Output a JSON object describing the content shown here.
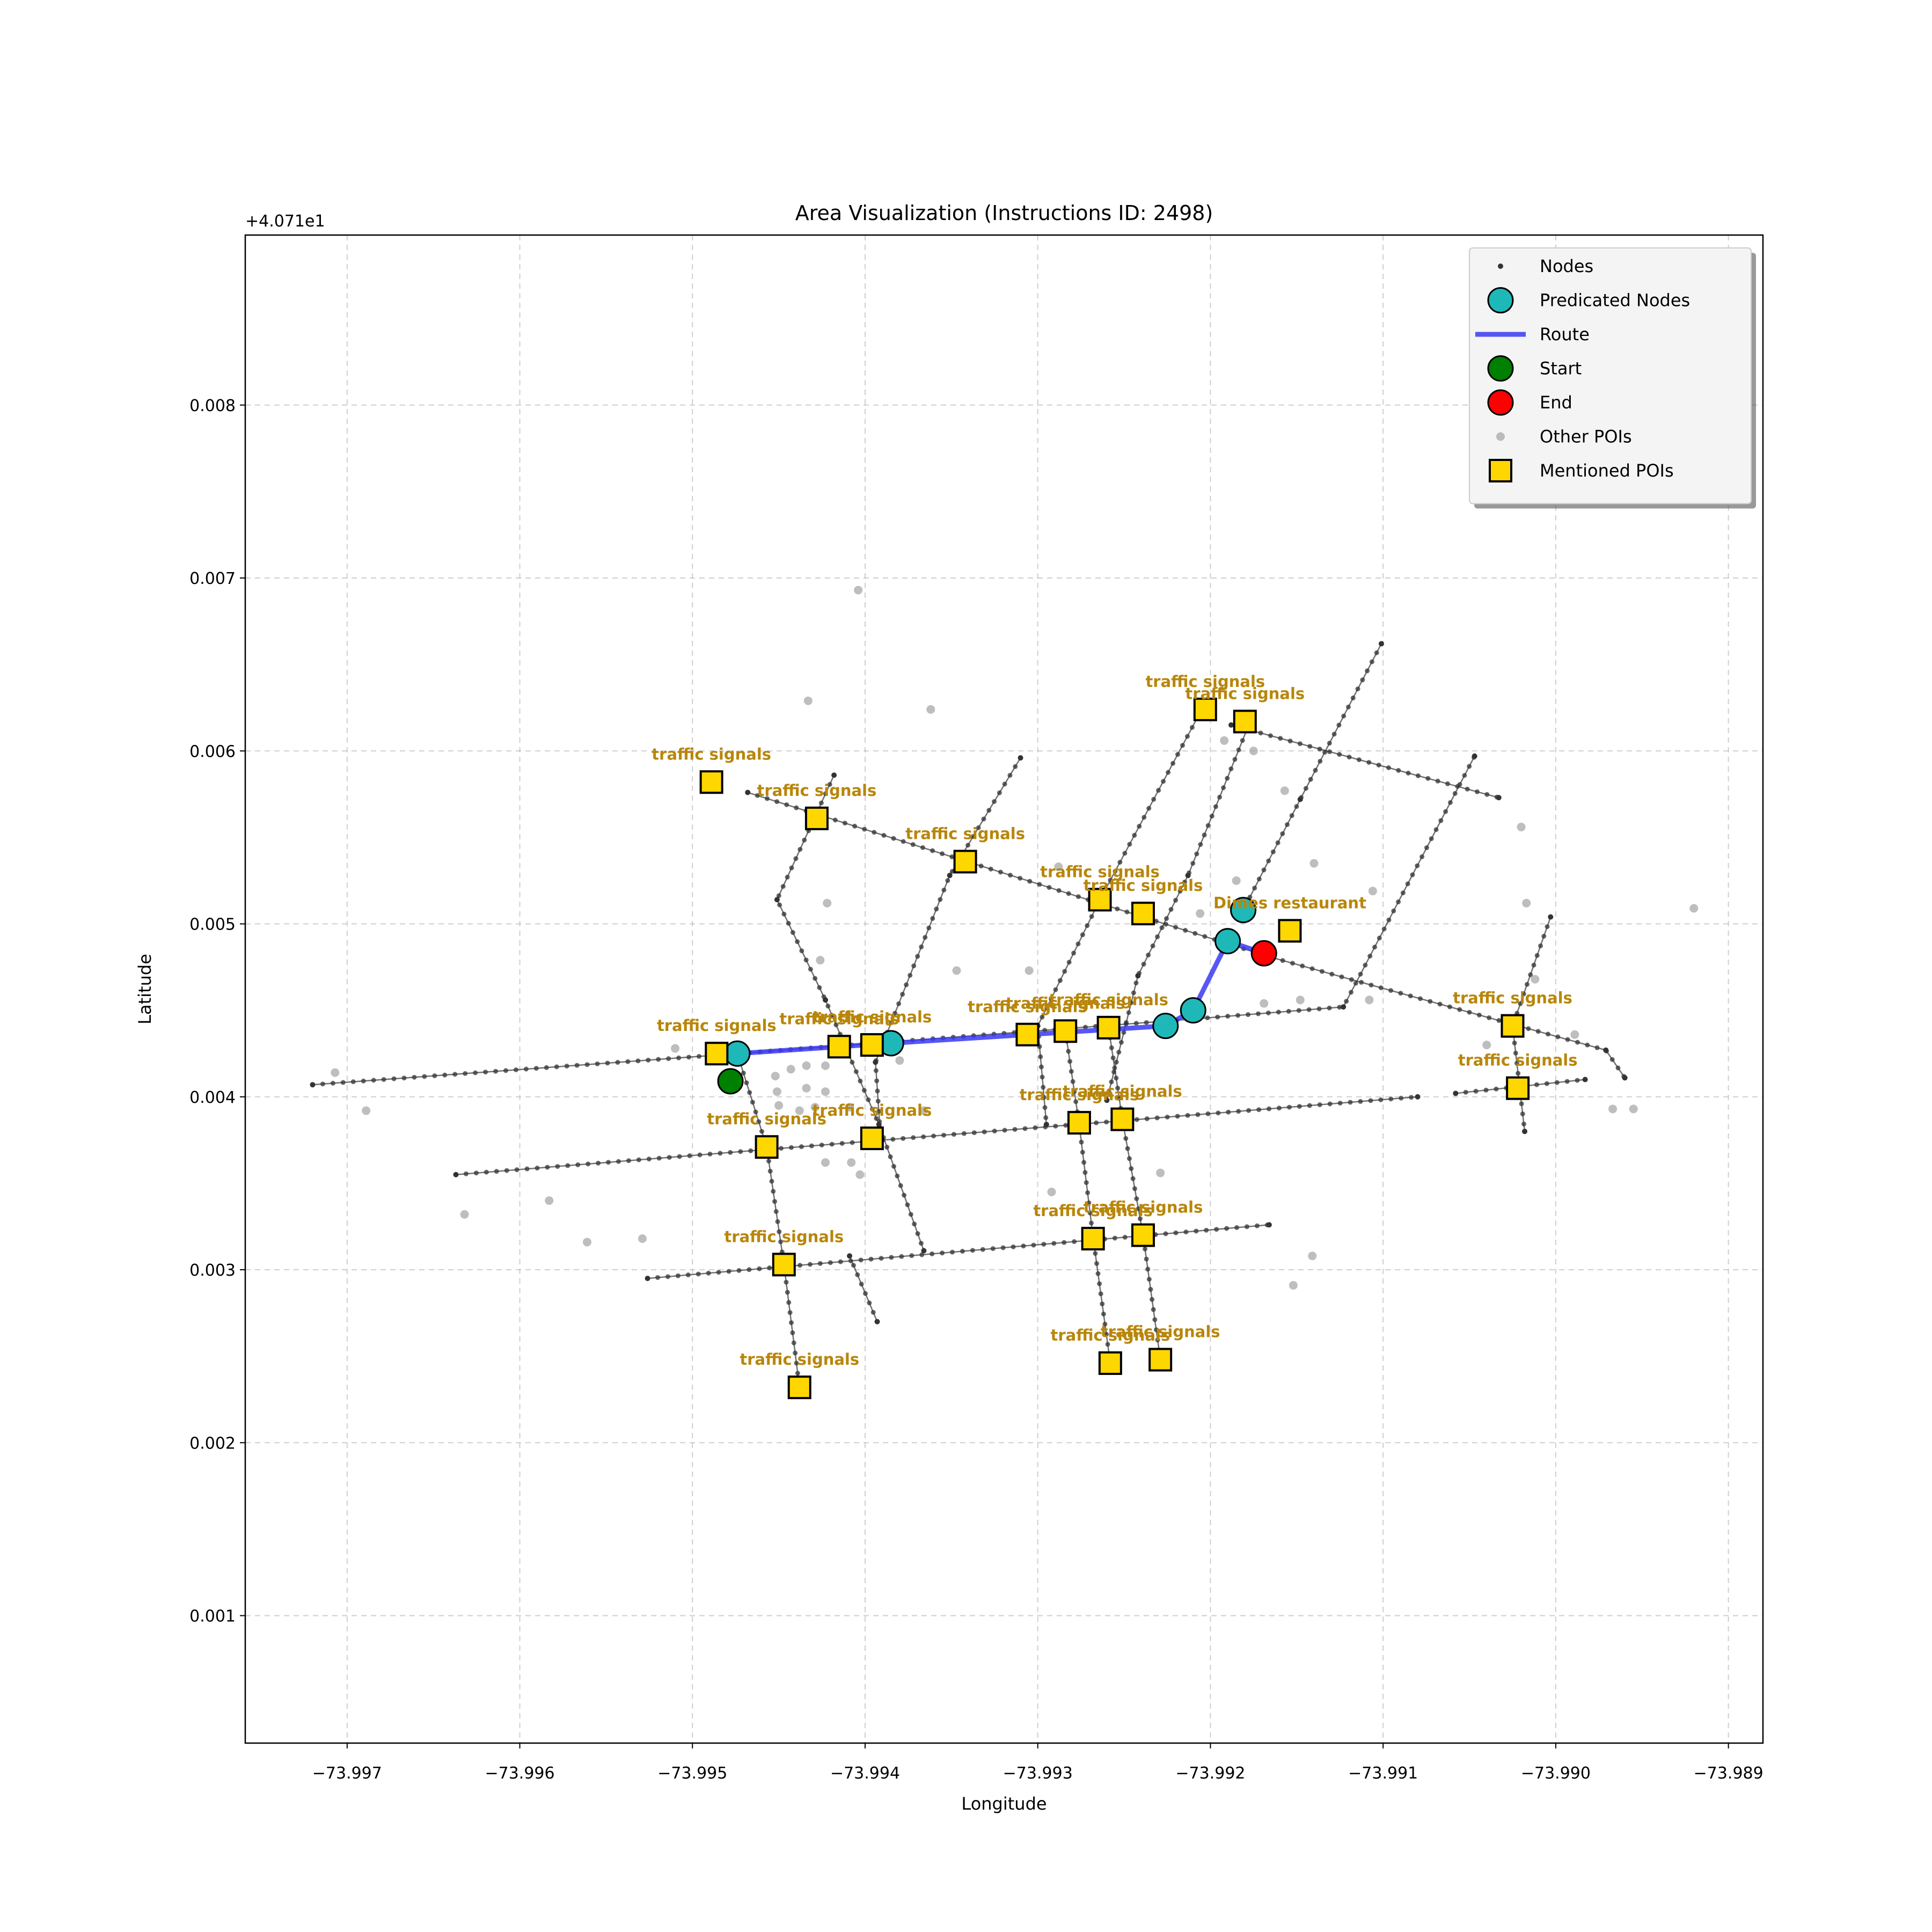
{
  "chart_data": {
    "type": "scatter",
    "title": "Area Visualization (Instructions ID: 2498)",
    "xlabel": "Longitude",
    "ylabel": "Latitude",
    "y_offset_label": "+4.071e1",
    "xlim": [
      -73.99759,
      -73.9888
    ],
    "ylim": [
      0.000263,
      0.008983
    ],
    "xticks": [
      {
        "value": -73.997,
        "label": "−73.997"
      },
      {
        "value": -73.996,
        "label": "−73.996"
      },
      {
        "value": -73.995,
        "label": "−73.995"
      },
      {
        "value": -73.994,
        "label": "−73.994"
      },
      {
        "value": -73.993,
        "label": "−73.993"
      },
      {
        "value": -73.992,
        "label": "−73.992"
      },
      {
        "value": -73.991,
        "label": "−73.991"
      },
      {
        "value": -73.99,
        "label": "−73.990"
      },
      {
        "value": -73.989,
        "label": "−73.989"
      }
    ],
    "yticks": [
      0.001,
      0.002,
      0.003,
      0.004,
      0.005,
      0.006,
      0.007,
      0.008
    ],
    "grid": true,
    "legend": "upper right",
    "series": [
      {
        "name": "Nodes",
        "color": "#333333",
        "marker": "dot",
        "paths": [
          {
            "x": [
              -73.9972,
              -73.99474,
              -73.9921,
              -73.99123,
              -73.99047
            ],
            "y": [
              0.00407,
              0.00425,
              0.00445,
              0.00452,
              0.00597
            ]
          },
          {
            "x": [
              -73.99637,
              -73.9908
            ],
            "y": [
              0.00355,
              0.004
            ]
          },
          {
            "x": [
              -73.99058,
              -73.98983
            ],
            "y": [
              0.00402,
              0.0041
            ]
          },
          {
            "x": [
              -73.99526,
              -73.99166
            ],
            "y": [
              0.00295,
              0.00326
            ]
          },
          {
            "x": [
              -73.99468,
              -73.99166,
              -73.98971,
              -73.9896
            ],
            "y": [
              0.00576,
              0.00481,
              0.00427,
              0.00411
            ]
          },
          {
            "x": [
              -73.99188,
              -73.99033
            ],
            "y": [
              0.00615,
              0.00573
            ]
          },
          {
            "x": [
              -73.99418,
              -73.99451,
              -73.99423,
              -73.99392,
              -73.99366
            ],
            "y": [
              0.00586,
              0.00514,
              0.00456,
              0.00384,
              0.00311
            ]
          },
          {
            "x": [
              -73.9931,
              -73.99351,
              -73.99394,
              -73.99391
            ],
            "y": [
              0.00596,
              0.00528,
              0.0042,
              0.00376
            ]
          },
          {
            "x": [
              -73.99474,
              -73.99457,
              -73.99447,
              -73.99438
            ],
            "y": [
              0.00425,
              0.00371,
              0.00303,
              0.00232
            ]
          },
          {
            "x": [
              -73.99205,
              -73.99264,
              -73.993,
              -73.99295
            ],
            "y": [
              0.00624,
              0.00514,
              0.00441,
              0.00384
            ]
          },
          {
            "x": [
              -73.99177,
              -73.99213,
              -73.99242,
              -73.9926
            ],
            "y": [
              0.00617,
              0.00528,
              0.0047,
              0.00398
            ]
          },
          {
            "x": [
              -73.99101,
              -73.99148,
              -73.99181
            ],
            "y": [
              0.00662,
              0.00572,
              0.00508
            ]
          },
          {
            "x": [
              -73.99284,
              -73.99276,
              -73.99268,
              -73.99258
            ],
            "y": [
              0.00438,
              0.00384,
              0.00319,
              0.00246
            ]
          },
          {
            "x": [
              -73.99259,
              -73.99251,
              -73.99239,
              -73.99229
            ],
            "y": [
              0.0044,
              0.00387,
              0.0032,
              0.00248
            ]
          },
          {
            "x": [
              -73.99003,
              -73.99025,
              -73.99018
            ],
            "y": [
              0.00504,
              0.00441,
              0.0038
            ]
          },
          {
            "x": [
              -73.99409,
              -73.99393
            ],
            "y": [
              0.00308,
              0.0027
            ]
          }
        ]
      },
      {
        "name": "Predicated Nodes",
        "color": "#1fb8b8",
        "marker": "circle",
        "x": [
          -73.99474,
          -73.99385,
          -73.99226,
          -73.9921,
          -73.9919,
          -73.99181
        ],
        "y": [
          0.00425,
          0.00431,
          0.00441,
          0.0045,
          0.0049,
          0.00508
        ]
      },
      {
        "name": "Route",
        "color": "#3a3af5",
        "marker": "line",
        "x": [
          -73.99474,
          -73.99385,
          -73.99226,
          -73.9921,
          -73.9919,
          -73.99169
        ],
        "y": [
          0.00425,
          0.00431,
          0.00441,
          0.0045,
          0.0049,
          0.00483
        ]
      },
      {
        "name": "Start",
        "color": "#008000",
        "marker": "circle",
        "x": [
          -73.99478
        ],
        "y": [
          0.00409
        ]
      },
      {
        "name": "End",
        "color": "#ff0000",
        "marker": "circle",
        "x": [
          -73.99169
        ],
        "y": [
          0.00483
        ]
      },
      {
        "name": "Other POIs",
        "color": "#a8a8a8",
        "marker": "dot",
        "x": [
          -73.99404,
          -73.99433,
          -73.99362,
          -73.99422,
          -73.99426,
          -73.99347,
          -73.99305,
          -73.99288,
          -73.99192,
          -73.99175,
          -73.99157,
          -73.9914,
          -73.99106,
          -73.9902,
          -73.99017,
          -73.99012,
          -73.98989,
          -73.9904,
          -73.9892,
          -73.98967,
          -73.98955,
          -73.99108,
          -73.99148,
          -73.99169,
          -73.99185,
          -73.99206,
          -73.99452,
          -73.99443,
          -73.99434,
          -73.99423,
          -73.99451,
          -73.99434,
          -73.99423,
          -73.9945,
          -73.99438,
          -73.99429,
          -73.99423,
          -73.99408,
          -73.99403,
          -73.9938,
          -73.9951,
          -73.99707,
          -73.99689,
          -73.99632,
          -73.99583,
          -73.99561,
          -73.99529,
          -73.99141,
          -73.99152,
          -73.99229,
          -73.99292,
          -73.99366,
          -73.99409
        ],
        "y": [
          0.00693,
          0.00629,
          0.00624,
          0.00512,
          0.00479,
          0.00473,
          0.00473,
          0.00533,
          0.00606,
          0.006,
          0.00577,
          0.00535,
          0.00519,
          0.00556,
          0.00512,
          0.00468,
          0.00436,
          0.0043,
          0.00509,
          0.00393,
          0.00393,
          0.00456,
          0.00456,
          0.00454,
          0.00525,
          0.00506,
          0.00412,
          0.00416,
          0.00418,
          0.00418,
          0.00403,
          0.00405,
          0.00403,
          0.00395,
          0.00392,
          0.00394,
          0.00362,
          0.00362,
          0.00355,
          0.00421,
          0.00428,
          0.00414,
          0.00392,
          0.00332,
          0.0034,
          0.00316,
          0.00318,
          0.00308,
          0.00291,
          0.00356,
          0.00345,
          0.00392,
          0.00394
        ]
      },
      {
        "name": "Mentioned POIs",
        "color": "#ffd700",
        "marker": "square",
        "x": [
          -73.99489,
          -73.99428,
          -73.99342,
          -73.99264,
          -73.99239,
          -73.99203,
          -73.9918,
          -73.99154,
          -73.99486,
          -73.99415,
          -73.99396,
          -73.99306,
          -73.99284,
          -73.99259,
          -73.99025,
          -73.99022,
          -73.99457,
          -73.99396,
          -73.99276,
          -73.99251,
          -73.99447,
          -73.99268,
          -73.99239,
          -73.99438,
          -73.99258,
          -73.99229
        ],
        "y": [
          0.00582,
          0.00561,
          0.00536,
          0.00514,
          0.00506,
          0.00624,
          0.00617,
          0.00496,
          0.00425,
          0.00429,
          0.0043,
          0.00436,
          0.00438,
          0.0044,
          0.00441,
          0.00405,
          0.00371,
          0.00376,
          0.00385,
          0.00387,
          0.00303,
          0.00318,
          0.0032,
          0.00232,
          0.00246,
          0.00248
        ],
        "labels": [
          "traffic signals",
          "traffic signals",
          "traffic signals",
          "traffic signals",
          "traffic signals",
          "traffic signals",
          "traffic signals",
          "Dimes restaurant",
          "traffic signals",
          "traffic signals",
          "traffic signals",
          "traffic signals",
          "traffic signals",
          "traffic signals",
          "traffic signals",
          "traffic signals",
          "traffic signals",
          "traffic signals",
          "traffic signals",
          "traffic signals",
          "traffic signals",
          "traffic signals",
          "traffic signals",
          "traffic signals",
          "traffic signals",
          "traffic signals"
        ]
      }
    ]
  }
}
